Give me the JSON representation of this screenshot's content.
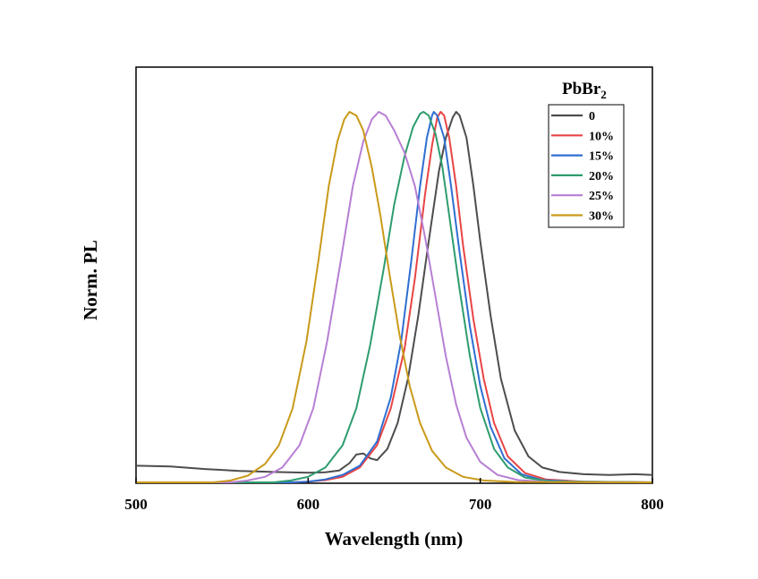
{
  "chart_data": {
    "type": "line",
    "title": "",
    "xlabel": "Wavelength (nm)",
    "ylabel": "Norm. PL",
    "xlim": [
      500,
      800
    ],
    "ylim": [
      0,
      1.0
    ],
    "xticks": [
      500,
      600,
      700,
      800
    ],
    "xtick_labels": [
      "500",
      "600",
      "700",
      "800"
    ],
    "yticks_visible": false,
    "grid": false,
    "legend": {
      "title": "PbBr",
      "title_subscript": "2",
      "position": "top-right"
    },
    "series": [
      {
        "name": "0",
        "color": "#4d4d4d",
        "points": [
          [
            500,
            0.045
          ],
          [
            520,
            0.043
          ],
          [
            540,
            0.036
          ],
          [
            560,
            0.031
          ],
          [
            580,
            0.028
          ],
          [
            600,
            0.026
          ],
          [
            610,
            0.027
          ],
          [
            618,
            0.032
          ],
          [
            624,
            0.052
          ],
          [
            628,
            0.075
          ],
          [
            632,
            0.078
          ],
          [
            636,
            0.065
          ],
          [
            640,
            0.06
          ],
          [
            646,
            0.09
          ],
          [
            652,
            0.16
          ],
          [
            658,
            0.28
          ],
          [
            664,
            0.45
          ],
          [
            670,
            0.65
          ],
          [
            676,
            0.84
          ],
          [
            680,
            0.93
          ],
          [
            684,
            0.985
          ],
          [
            686,
            1.0
          ],
          [
            688,
            0.99
          ],
          [
            692,
            0.93
          ],
          [
            696,
            0.8
          ],
          [
            700,
            0.65
          ],
          [
            706,
            0.45
          ],
          [
            712,
            0.28
          ],
          [
            720,
            0.14
          ],
          [
            728,
            0.07
          ],
          [
            736,
            0.04
          ],
          [
            746,
            0.028
          ],
          [
            760,
            0.022
          ],
          [
            775,
            0.02
          ],
          [
            790,
            0.022
          ],
          [
            800,
            0.02
          ]
        ]
      },
      {
        "name": "10%",
        "color": "#e84545",
        "points": [
          [
            500,
            0
          ],
          [
            590,
            0
          ],
          [
            600,
            0.002
          ],
          [
            610,
            0.006
          ],
          [
            620,
            0.015
          ],
          [
            630,
            0.04
          ],
          [
            640,
            0.1
          ],
          [
            648,
            0.2
          ],
          [
            656,
            0.36
          ],
          [
            662,
            0.55
          ],
          [
            668,
            0.78
          ],
          [
            672,
            0.91
          ],
          [
            675,
            0.985
          ],
          [
            677,
            1.0
          ],
          [
            679,
            0.99
          ],
          [
            682,
            0.93
          ],
          [
            686,
            0.8
          ],
          [
            690,
            0.64
          ],
          [
            696,
            0.44
          ],
          [
            702,
            0.28
          ],
          [
            708,
            0.16
          ],
          [
            716,
            0.07
          ],
          [
            726,
            0.025
          ],
          [
            738,
            0.008
          ],
          [
            760,
            0.002
          ],
          [
            800,
            0
          ]
        ]
      },
      {
        "name": "15%",
        "color": "#2f6fd1",
        "points": [
          [
            500,
            0
          ],
          [
            590,
            0
          ],
          [
            600,
            0.002
          ],
          [
            610,
            0.008
          ],
          [
            620,
            0.02
          ],
          [
            630,
            0.045
          ],
          [
            640,
            0.11
          ],
          [
            648,
            0.23
          ],
          [
            654,
            0.38
          ],
          [
            660,
            0.6
          ],
          [
            665,
            0.8
          ],
          [
            669,
            0.93
          ],
          [
            672,
            0.99
          ],
          [
            673,
            1.0
          ],
          [
            675,
            0.99
          ],
          [
            679,
            0.93
          ],
          [
            683,
            0.8
          ],
          [
            688,
            0.62
          ],
          [
            694,
            0.42
          ],
          [
            700,
            0.26
          ],
          [
            706,
            0.15
          ],
          [
            714,
            0.065
          ],
          [
            724,
            0.022
          ],
          [
            736,
            0.006
          ],
          [
            760,
            0.001
          ],
          [
            800,
            0
          ]
        ]
      },
      {
        "name": "20%",
        "color": "#2e9c6e",
        "points": [
          [
            500,
            0
          ],
          [
            580,
            0
          ],
          [
            590,
            0.005
          ],
          [
            600,
            0.015
          ],
          [
            610,
            0.04
          ],
          [
            620,
            0.1
          ],
          [
            628,
            0.2
          ],
          [
            636,
            0.37
          ],
          [
            644,
            0.58
          ],
          [
            650,
            0.75
          ],
          [
            656,
            0.88
          ],
          [
            661,
            0.96
          ],
          [
            665,
            0.995
          ],
          [
            667,
            1.0
          ],
          [
            670,
            0.99
          ],
          [
            674,
            0.94
          ],
          [
            678,
            0.85
          ],
          [
            682,
            0.72
          ],
          [
            688,
            0.52
          ],
          [
            694,
            0.34
          ],
          [
            700,
            0.2
          ],
          [
            708,
            0.09
          ],
          [
            716,
            0.04
          ],
          [
            726,
            0.013
          ],
          [
            740,
            0.003
          ],
          [
            800,
            0
          ]
        ]
      },
      {
        "name": "25%",
        "color": "#b77fd4",
        "points": [
          [
            500,
            0
          ],
          [
            555,
            0
          ],
          [
            565,
            0.005
          ],
          [
            575,
            0.015
          ],
          [
            585,
            0.04
          ],
          [
            595,
            0.1
          ],
          [
            603,
            0.2
          ],
          [
            611,
            0.38
          ],
          [
            619,
            0.6
          ],
          [
            626,
            0.8
          ],
          [
            632,
            0.92
          ],
          [
            637,
            0.98
          ],
          [
            641,
            1.0
          ],
          [
            645,
            0.99
          ],
          [
            650,
            0.95
          ],
          [
            656,
            0.89
          ],
          [
            662,
            0.8
          ],
          [
            668,
            0.66
          ],
          [
            674,
            0.5
          ],
          [
            680,
            0.34
          ],
          [
            686,
            0.21
          ],
          [
            692,
            0.12
          ],
          [
            700,
            0.055
          ],
          [
            710,
            0.02
          ],
          [
            722,
            0.006
          ],
          [
            740,
            0.001
          ],
          [
            800,
            0
          ]
        ]
      },
      {
        "name": "30%",
        "color": "#c99a1a",
        "points": [
          [
            500,
            0
          ],
          [
            545,
            0
          ],
          [
            555,
            0.005
          ],
          [
            565,
            0.018
          ],
          [
            575,
            0.05
          ],
          [
            583,
            0.1
          ],
          [
            591,
            0.2
          ],
          [
            599,
            0.38
          ],
          [
            606,
            0.6
          ],
          [
            612,
            0.8
          ],
          [
            617,
            0.92
          ],
          [
            621,
            0.98
          ],
          [
            624,
            1.0
          ],
          [
            628,
            0.99
          ],
          [
            632,
            0.95
          ],
          [
            637,
            0.85
          ],
          [
            642,
            0.72
          ],
          [
            647,
            0.57
          ],
          [
            653,
            0.4
          ],
          [
            659,
            0.26
          ],
          [
            665,
            0.16
          ],
          [
            672,
            0.085
          ],
          [
            680,
            0.04
          ],
          [
            690,
            0.015
          ],
          [
            702,
            0.005
          ],
          [
            720,
            0.001
          ],
          [
            800,
            0
          ]
        ]
      }
    ]
  }
}
